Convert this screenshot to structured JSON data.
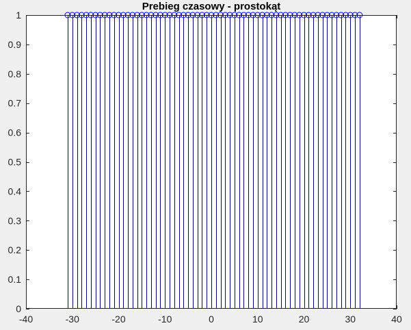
{
  "chart_data": {
    "type": "stem",
    "title": "Prebieg czasowy - prostokąt",
    "xlabel": "",
    "ylabel": "",
    "xlim": [
      -40,
      40
    ],
    "ylim": [
      0,
      1
    ],
    "xticks": [
      -40,
      -30,
      -20,
      -10,
      0,
      10,
      20,
      30,
      40
    ],
    "xtick_labels": [
      "-40",
      "-30",
      "-20",
      "-10",
      "0",
      "10",
      "20",
      "30",
      "40"
    ],
    "yticks": [
      0,
      0.1,
      0.2,
      0.3,
      0.4,
      0.5,
      0.6,
      0.7,
      0.8,
      0.9,
      1
    ],
    "ytick_labels": [
      "0",
      "0.1",
      "0.2",
      "0.3",
      "0.4",
      "0.5",
      "0.6",
      "0.7",
      "0.8",
      "0.9",
      "1"
    ],
    "grid": false,
    "marker": "circle-open",
    "x": [
      -31,
      -30,
      -29,
      -28,
      -27,
      -26,
      -25,
      -24,
      -23,
      -22,
      -21,
      -20,
      -19,
      -18,
      -17,
      -16,
      -15,
      -14,
      -13,
      -12,
      -11,
      -10,
      -9,
      -8,
      -7,
      -6,
      -5,
      -4,
      -3,
      -2,
      -1,
      0,
      1,
      2,
      3,
      4,
      5,
      6,
      7,
      8,
      9,
      10,
      11,
      12,
      13,
      14,
      15,
      16,
      17,
      18,
      19,
      20,
      21,
      22,
      23,
      24,
      25,
      26,
      27,
      28,
      29,
      30,
      31,
      32
    ],
    "y": [
      1,
      1,
      1,
      1,
      1,
      1,
      1,
      1,
      1,
      1,
      1,
      1,
      1,
      1,
      1,
      1,
      1,
      1,
      1,
      1,
      1,
      1,
      1,
      1,
      1,
      1,
      1,
      1,
      1,
      1,
      1,
      1,
      1,
      1,
      1,
      1,
      1,
      1,
      1,
      1,
      1,
      1,
      1,
      1,
      1,
      1,
      1,
      1,
      1,
      1,
      1,
      1,
      1,
      1,
      1,
      1,
      1,
      1,
      1,
      1,
      1,
      1,
      1,
      1
    ]
  },
  "colors": {
    "figure_bg": "#f0f0f0",
    "axes_bg": "#ffffff",
    "axis_line": "#262626",
    "stem": "#00008b",
    "marker": "#0000ff"
  }
}
